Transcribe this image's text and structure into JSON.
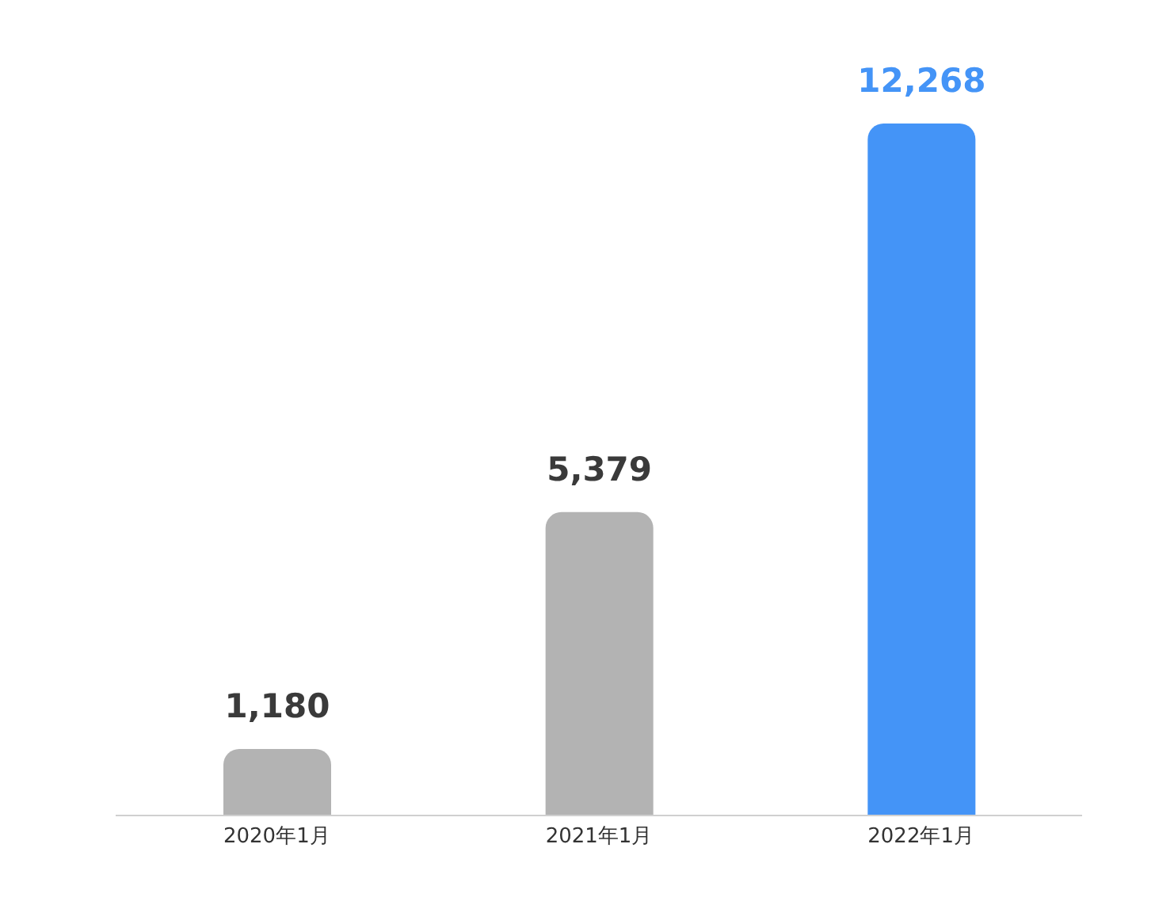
{
  "chart_data": {
    "type": "bar",
    "categories": [
      "2020年1月",
      "2021年1月",
      "2022年1月"
    ],
    "values": [
      1180,
      5379,
      12268
    ],
    "colors": [
      "#b3b3b3",
      "#b3b3b3",
      "#4494f7"
    ],
    "value_labels": [
      "1,180",
      "5,379",
      "12,268"
    ]
  }
}
